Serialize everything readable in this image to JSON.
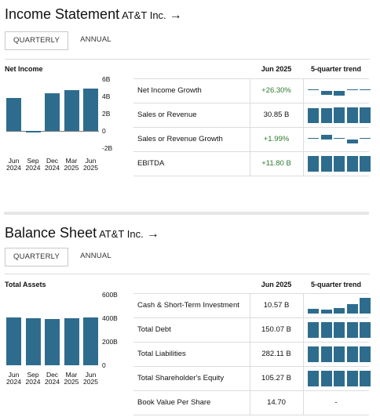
{
  "income": {
    "title": "Income Statement",
    "company": "AT&T Inc.",
    "arrow": "→",
    "tabs": {
      "quarterly": "QUARTERLY",
      "annual": "ANNUAL"
    },
    "chart_title": "Net Income",
    "y_ticks": [
      "6B",
      "4B",
      "2B",
      "0",
      "-2B"
    ],
    "x_labels": [
      [
        "Jun",
        "2024"
      ],
      [
        "Sep",
        "2024"
      ],
      [
        "Dec",
        "2024"
      ],
      [
        "Mar",
        "2025"
      ],
      [
        "Jun",
        "2025"
      ]
    ],
    "col_period": "Jun 2025",
    "col_trend": "5-quarter trend",
    "rows": [
      {
        "label": "Net Income Growth",
        "value": "+26.30%"
      },
      {
        "label": "Sales or Revenue",
        "value": "30.85 B"
      },
      {
        "label": "Sales or Revenue Growth",
        "value": "+1.99%"
      },
      {
        "label": "EBITDA",
        "value": "+11.80 B"
      }
    ]
  },
  "balance": {
    "title": "Balance Sheet",
    "company": "AT&T Inc.",
    "arrow": "→",
    "tabs": {
      "quarterly": "QUARTERLY",
      "annual": "ANNUAL"
    },
    "chart_title": "Total Assets",
    "y_ticks": [
      "600B",
      "400B",
      "200B",
      "0"
    ],
    "x_labels": [
      [
        "Jun",
        "2024"
      ],
      [
        "Sep",
        "2024"
      ],
      [
        "Dec",
        "2024"
      ],
      [
        "Mar",
        "2025"
      ],
      [
        "Jun",
        "2025"
      ]
    ],
    "col_period": "Jun 2025",
    "col_trend": "5-quarter trend",
    "rows": [
      {
        "label": "Cash & Short-Term Investment",
        "value": "10.57 B"
      },
      {
        "label": "Total Debt",
        "value": "150.07 B"
      },
      {
        "label": "Total Liabilities",
        "value": "282.11 B"
      },
      {
        "label": "Total Shareholder's Equity",
        "value": "105.27 B"
      },
      {
        "label": "Book Value Per Share",
        "value": "14.70",
        "trend": "-"
      }
    ]
  },
  "chart_data": [
    {
      "type": "bar",
      "title": "Net Income",
      "categories": [
        "Jun 2024",
        "Sep 2024",
        "Dec 2024",
        "Mar 2025",
        "Jun 2025"
      ],
      "values": [
        3.8,
        -0.2,
        4.4,
        4.7,
        4.9
      ],
      "ylim": [
        -2,
        6
      ],
      "y_ticks": [
        6,
        4,
        2,
        0,
        -2
      ]
    },
    {
      "type": "bar",
      "title": "Total Assets",
      "categories": [
        "Jun 2024",
        "Sep 2024",
        "Dec 2024",
        "Mar 2025",
        "Jun 2025"
      ],
      "values": [
        406,
        400,
        395,
        402,
        410
      ],
      "ylim": [
        0,
        600
      ],
      "y_ticks": [
        600,
        400,
        200,
        0
      ]
    }
  ],
  "trends": {
    "income": [
      {
        "kind": "signed",
        "values": [
          0.05,
          -0.25,
          -0.3,
          0.1,
          0.1
        ]
      },
      {
        "kind": "bar",
        "values": [
          0.9,
          0.9,
          0.95,
          0.93,
          0.95
        ]
      },
      {
        "kind": "signed",
        "values": [
          0.05,
          0.25,
          0.1,
          -0.25,
          0.08
        ]
      },
      {
        "kind": "bar",
        "values": [
          0.95,
          0.95,
          0.95,
          0.95,
          0.95
        ]
      }
    ],
    "balance": [
      {
        "kind": "bar",
        "values": [
          0.3,
          0.25,
          0.35,
          0.55,
          0.95
        ]
      },
      {
        "kind": "bar",
        "values": [
          0.95,
          0.95,
          0.95,
          0.95,
          0.95
        ]
      },
      {
        "kind": "bar",
        "values": [
          0.95,
          0.95,
          0.95,
          0.95,
          0.95
        ]
      },
      {
        "kind": "bar",
        "values": [
          0.95,
          0.95,
          0.95,
          0.95,
          0.95
        ]
      }
    ]
  }
}
